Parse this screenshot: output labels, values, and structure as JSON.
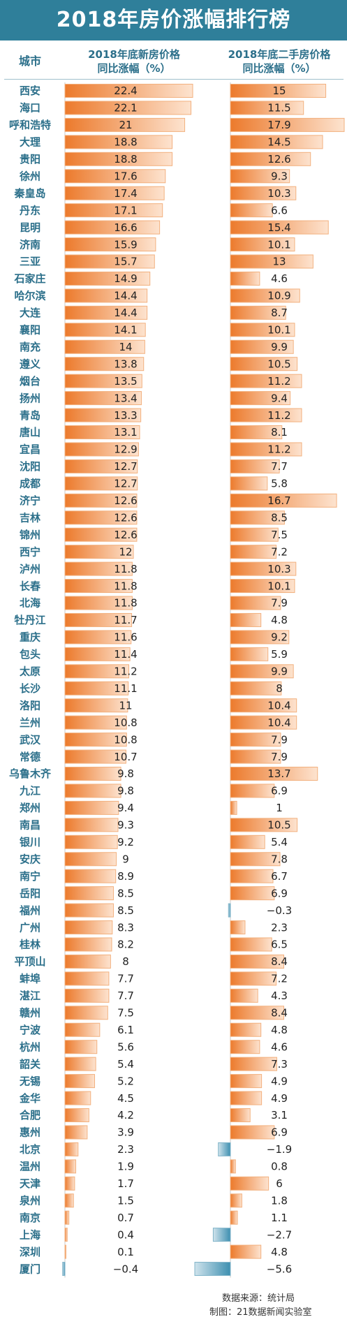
{
  "title": "2018年房价涨幅排行榜",
  "headers": {
    "city": "城市",
    "new_line1": "2018年底新房价格",
    "new_line2": "同比涨幅（%）",
    "second_line1": "2018年底二手房价格",
    "second_line2": "同比涨幅（%）"
  },
  "footer": {
    "source": "数据来源：统计局",
    "credit": "制图：21数据新闻实验室"
  },
  "colors": {
    "title_bg": "#2f7f9a",
    "positive_bar": "#f08a3c",
    "negative_bar": "#3d8fb0",
    "city_text": "#2b6f8a"
  },
  "chart_data": {
    "type": "bar",
    "title": "2018年房价涨幅排行榜",
    "categories": [
      "西安",
      "海口",
      "呼和浩特",
      "大理",
      "贵阳",
      "徐州",
      "秦皇岛",
      "丹东",
      "昆明",
      "济南",
      "三亚",
      "石家庄",
      "哈尔滨",
      "大连",
      "襄阳",
      "南充",
      "遵义",
      "烟台",
      "扬州",
      "青岛",
      "唐山",
      "宜昌",
      "沈阳",
      "成都",
      "济宁",
      "吉林",
      "锦州",
      "西宁",
      "泸州",
      "长春",
      "北海",
      "牡丹江",
      "重庆",
      "包头",
      "太原",
      "长沙",
      "洛阳",
      "兰州",
      "武汉",
      "常德",
      "乌鲁木齐",
      "九江",
      "郑州",
      "南昌",
      "银川",
      "安庆",
      "南宁",
      "岳阳",
      "福州",
      "广州",
      "桂林",
      "平顶山",
      "蚌埠",
      "湛江",
      "赣州",
      "宁波",
      "杭州",
      "韶关",
      "无锡",
      "金华",
      "合肥",
      "惠州",
      "北京",
      "温州",
      "天津",
      "泉州",
      "南京",
      "上海",
      "深圳",
      "厦门"
    ],
    "series": [
      {
        "name": "2018年底新房价格同比涨幅（%）",
        "values": [
          22.4,
          22.1,
          21,
          18.8,
          18.8,
          17.6,
          17.4,
          17.1,
          16.6,
          15.9,
          15.7,
          14.9,
          14.4,
          14.4,
          14.1,
          14,
          13.8,
          13.5,
          13.4,
          13.3,
          13.1,
          12.9,
          12.7,
          12.7,
          12.6,
          12.6,
          12.6,
          12,
          11.8,
          11.8,
          11.8,
          11.7,
          11.6,
          11.4,
          11.2,
          11.1,
          11,
          10.8,
          10.8,
          10.7,
          9.8,
          9.8,
          9.4,
          9.3,
          9.2,
          9,
          8.9,
          8.5,
          8.5,
          8.3,
          8.2,
          8,
          7.7,
          7.7,
          7.5,
          6.1,
          5.6,
          5.4,
          5.2,
          4.5,
          4.2,
          3.9,
          2.3,
          1.9,
          1.7,
          1.5,
          0.7,
          0.4,
          0.1,
          -0.4
        ]
      },
      {
        "name": "2018年底二手房价格同比涨幅（%）",
        "values": [
          15,
          11.5,
          17.9,
          14.5,
          12.6,
          9.3,
          10.3,
          6.6,
          15.4,
          10.1,
          13,
          4.6,
          10.9,
          8.7,
          10.1,
          9.9,
          10.5,
          11.2,
          9.4,
          11.2,
          8.1,
          11.2,
          7.7,
          5.8,
          16.7,
          8.5,
          7.5,
          7.2,
          10.3,
          10.1,
          7.9,
          4.8,
          9.2,
          5.9,
          9.9,
          8,
          10.4,
          10.4,
          7.9,
          7.9,
          13.7,
          6.9,
          1,
          10.5,
          5.4,
          7.8,
          6.7,
          6.9,
          -0.3,
          2.3,
          6.5,
          8.4,
          7.2,
          4.3,
          8.4,
          4.8,
          4.6,
          7.3,
          4.9,
          4.9,
          3.1,
          6.9,
          -1.9,
          0.8,
          6,
          1.8,
          1.1,
          -2.7,
          4.8,
          -5.6
        ]
      }
    ],
    "value_labels": {
      "new": [
        "22.4",
        "22.1",
        "21",
        "18.8",
        "18.8",
        "17.6",
        "17.4",
        "17.1",
        "16.6",
        "15.9",
        "15.7",
        "14.9",
        "14.4",
        "14.4",
        "14.1",
        "14",
        "13.8",
        "13.5",
        "13.4",
        "13.3",
        "13.1",
        "12.9",
        "12.7",
        "12.7",
        "12.6",
        "12.6",
        "12.6",
        "12",
        "11.8",
        "11.8",
        "11.8",
        "11.7",
        "11.6",
        "11.4",
        "11.2",
        "11.1",
        "11",
        "10.8",
        "10.8",
        "10.7",
        "9.8",
        "9.8",
        "9.4",
        "9.3",
        "9.2",
        "9",
        "8.9",
        "8.5",
        "8.5",
        "8.3",
        "8.2",
        "8",
        "7.7",
        "7.7",
        "7.5",
        "6.1",
        "5.6",
        "5.4",
        "5.2",
        "4.5",
        "4.2",
        "3.9",
        "2.3",
        "1.9",
        "1.7",
        "1.5",
        "0.7",
        "0.4",
        "0.1",
        "−0.4"
      ],
      "second": [
        "15",
        "11.5",
        "17.9",
        "14.5",
        "12.6",
        "9.3",
        "10.3",
        "6.6",
        "15.4",
        "10.1",
        "13",
        "4.6",
        "10.9",
        "8.7",
        "10.1",
        "9.9",
        "10.5",
        "11.2",
        "9.4",
        "11.2",
        "8.1",
        "11.2",
        "7.7",
        "5.8",
        "16.7",
        "8.5",
        "7.5",
        "7.2",
        "10.3",
        "10.1",
        "7.9",
        "4.8",
        "9.2",
        "5.9",
        "9.9",
        "8",
        "10.4",
        "10.4",
        "7.9",
        "7.9",
        "13.7",
        "6.9",
        "1",
        "10.5",
        "5.4",
        "7.8",
        "6.7",
        "6.9",
        "−0.3",
        "2.3",
        "6.5",
        "8.4",
        "7.2",
        "4.3",
        "8.4",
        "4.8",
        "4.6",
        "7.3",
        "4.9",
        "4.9",
        "3.1",
        "6.9",
        "−1.9",
        "0.8",
        "6",
        "1.8",
        "1.1",
        "−2.7",
        "4.8",
        "−5.6"
      ]
    },
    "grid": false
  }
}
